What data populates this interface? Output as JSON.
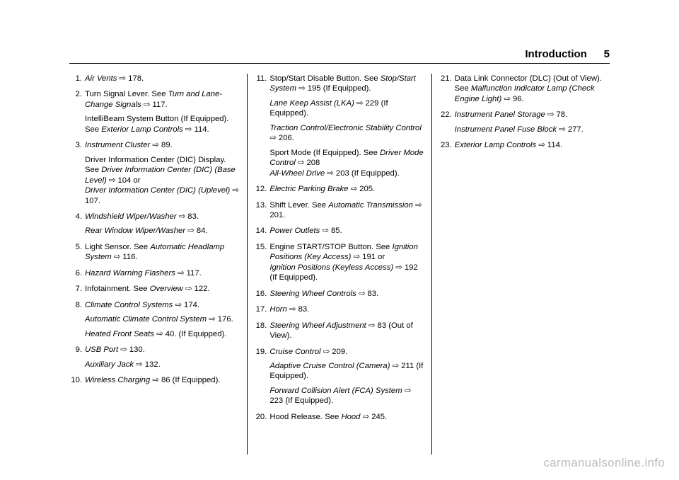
{
  "header": {
    "title": "Introduction",
    "page": "5"
  },
  "watermark": "carmanualsonline.info",
  "items": [
    {
      "lines": [
        {
          "segments": [
            {
              "t": "Air Vents",
              "i": true
            },
            {
              "t": " ⇨ 178."
            }
          ]
        }
      ]
    },
    {
      "lines": [
        {
          "segments": [
            {
              "t": "Turn Signal Lever. See "
            },
            {
              "t": "Turn and Lane-Change Signals",
              "i": true
            },
            {
              "t": " ⇨ 117."
            }
          ]
        },
        {
          "segments": [
            {
              "t": "IntelliBeam System Button (If Equipped). See "
            },
            {
              "t": "Exterior Lamp Controls",
              "i": true
            },
            {
              "t": " ⇨ 114."
            }
          ]
        }
      ]
    },
    {
      "lines": [
        {
          "segments": [
            {
              "t": "Instrument Cluster",
              "i": true
            },
            {
              "t": " ⇨ 89."
            }
          ]
        },
        {
          "segments": [
            {
              "t": "Driver Information Center (DIC) Display. See "
            },
            {
              "t": "Driver Information Center (DIC) (Base Level)",
              "i": true
            },
            {
              "t": " ⇨ 104 or"
            }
          ]
        },
        {
          "segments": [
            {
              "t": "Driver Information Center (DIC) (Uplevel)",
              "i": true
            },
            {
              "t": " ⇨ 107."
            }
          ],
          "tight": true
        }
      ]
    },
    {
      "lines": [
        {
          "segments": [
            {
              "t": "Windshield Wiper/Washer",
              "i": true
            },
            {
              "t": " ⇨ 83."
            }
          ]
        },
        {
          "segments": [
            {
              "t": "Rear Window Wiper/Washer",
              "i": true
            },
            {
              "t": " ⇨ 84."
            }
          ]
        }
      ]
    },
    {
      "lines": [
        {
          "segments": [
            {
              "t": "Light Sensor. See "
            },
            {
              "t": "Automatic Headlamp System",
              "i": true
            },
            {
              "t": " ⇨ 116."
            }
          ]
        }
      ]
    },
    {
      "lines": [
        {
          "segments": [
            {
              "t": "Hazard Warning Flashers",
              "i": true
            },
            {
              "t": " ⇨ 117."
            }
          ]
        }
      ]
    },
    {
      "lines": [
        {
          "segments": [
            {
              "t": "Infotainment. See "
            },
            {
              "t": "Overview",
              "i": true
            },
            {
              "t": " ⇨ 122."
            }
          ]
        }
      ]
    },
    {
      "lines": [
        {
          "segments": [
            {
              "t": "Climate Control Systems",
              "i": true
            },
            {
              "t": " ⇨ 174."
            }
          ]
        },
        {
          "segments": [
            {
              "t": "Automatic Climate Control System",
              "i": true
            },
            {
              "t": " ⇨ 176."
            }
          ]
        },
        {
          "segments": [
            {
              "t": "Heated Front Seats",
              "i": true
            },
            {
              "t": " ⇨ 40. (If Equipped)."
            }
          ]
        }
      ]
    },
    {
      "lines": [
        {
          "segments": [
            {
              "t": "USB Port",
              "i": true
            },
            {
              "t": " ⇨ 130."
            }
          ]
        },
        {
          "segments": [
            {
              "t": "Auxiliary Jack",
              "i": true
            },
            {
              "t": " ⇨ 132."
            }
          ]
        }
      ]
    },
    {
      "lines": [
        {
          "segments": [
            {
              "t": "Wireless Charging",
              "i": true
            },
            {
              "t": " ⇨ 86 (If Equipped)."
            }
          ]
        }
      ]
    },
    {
      "lines": [
        {
          "segments": [
            {
              "t": "Stop/Start Disable Button. See "
            },
            {
              "t": "Stop/Start System",
              "i": true
            },
            {
              "t": " ⇨ 195 (If Equipped)."
            }
          ]
        },
        {
          "segments": [
            {
              "t": "Lane Keep Assist (LKA)",
              "i": true
            },
            {
              "t": " ⇨ 229 (If Equipped)."
            }
          ]
        },
        {
          "segments": [
            {
              "t": "Traction Control/Electronic Stability Control",
              "i": true
            },
            {
              "t": " ⇨ 206."
            }
          ]
        },
        {
          "segments": [
            {
              "t": "Sport Mode (If Equipped). See "
            },
            {
              "t": "Driver Mode Control",
              "i": true
            },
            {
              "t": " ⇨ 208"
            }
          ]
        },
        {
          "segments": [
            {
              "t": "All-Wheel Drive",
              "i": true
            },
            {
              "t": " ⇨ 203 (If Equipped)."
            }
          ],
          "tight": true
        }
      ]
    },
    {
      "lines": [
        {
          "segments": [
            {
              "t": "Electric Parking Brake",
              "i": true
            },
            {
              "t": " ⇨ 205."
            }
          ]
        }
      ]
    },
    {
      "lines": [
        {
          "segments": [
            {
              "t": "Shift Lever. See "
            },
            {
              "t": "Automatic Transmission",
              "i": true
            },
            {
              "t": " ⇨ 201."
            }
          ]
        }
      ]
    },
    {
      "lines": [
        {
          "segments": [
            {
              "t": "Power Outlets",
              "i": true
            },
            {
              "t": " ⇨ 85."
            }
          ]
        }
      ]
    },
    {
      "lines": [
        {
          "segments": [
            {
              "t": "Engine START/STOP Button. See "
            },
            {
              "t": "Ignition Positions (Key Access)",
              "i": true
            },
            {
              "t": " ⇨ 191 or"
            }
          ]
        },
        {
          "segments": [
            {
              "t": "Ignition Positions (Keyless Access)",
              "i": true
            },
            {
              "t": " ⇨ 192 (If Equipped)."
            }
          ],
          "tight": true
        }
      ]
    },
    {
      "lines": [
        {
          "segments": [
            {
              "t": "Steering Wheel Controls",
              "i": true
            },
            {
              "t": " ⇨ 83."
            }
          ]
        }
      ]
    },
    {
      "lines": [
        {
          "segments": [
            {
              "t": "Horn",
              "i": true
            },
            {
              "t": " ⇨ 83."
            }
          ]
        }
      ]
    },
    {
      "lines": [
        {
          "segments": [
            {
              "t": "Steering Wheel Adjustment",
              "i": true
            },
            {
              "t": " ⇨ 83 (Out of View)."
            }
          ]
        }
      ]
    },
    {
      "lines": [
        {
          "segments": [
            {
              "t": "Cruise Control",
              "i": true
            },
            {
              "t": " ⇨ 209."
            }
          ]
        },
        {
          "segments": [
            {
              "t": "Adaptive Cruise Control (Camera)",
              "i": true
            },
            {
              "t": " ⇨ 211 (If Equipped)."
            }
          ]
        },
        {
          "segments": [
            {
              "t": "Forward Collision Alert (FCA) System",
              "i": true
            },
            {
              "t": " ⇨ 223 (If Equipped)."
            }
          ]
        }
      ]
    },
    {
      "lines": [
        {
          "segments": [
            {
              "t": "Hood Release. See "
            },
            {
              "t": "Hood",
              "i": true
            },
            {
              "t": " ⇨ 245."
            }
          ]
        }
      ]
    },
    {
      "lines": [
        {
          "segments": [
            {
              "t": "Data Link Connector (DLC) (Out of View). See "
            },
            {
              "t": "Malfunction Indicator Lamp (Check Engine Light)",
              "i": true
            },
            {
              "t": " ⇨ 96."
            }
          ]
        }
      ]
    },
    {
      "lines": [
        {
          "segments": [
            {
              "t": "Instrument Panel Storage",
              "i": true
            },
            {
              "t": " ⇨ 78."
            }
          ]
        },
        {
          "segments": [
            {
              "t": "Instrument Panel Fuse Block",
              "i": true
            },
            {
              "t": " ⇨ 277."
            }
          ]
        }
      ]
    },
    {
      "lines": [
        {
          "segments": [
            {
              "t": "Exterior Lamp Controls",
              "i": true
            },
            {
              "t": " ⇨ 114."
            }
          ]
        }
      ]
    }
  ]
}
